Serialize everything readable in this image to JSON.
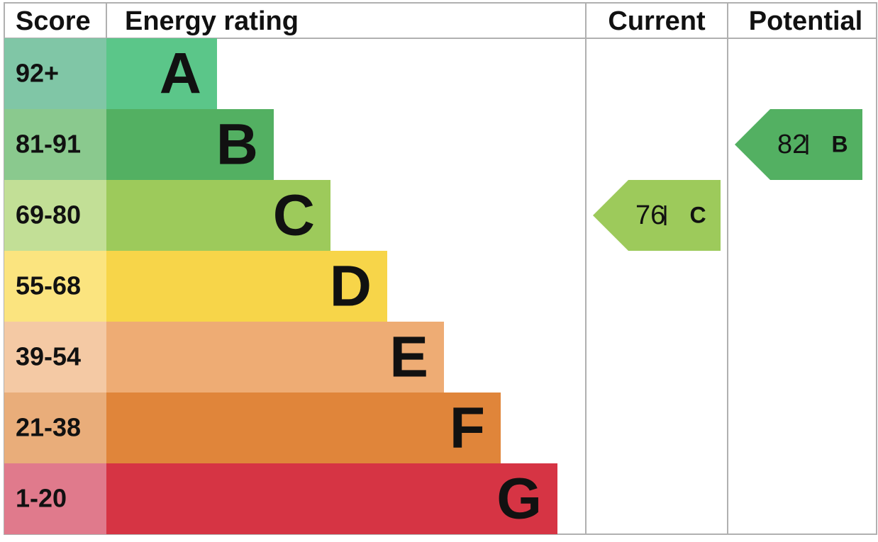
{
  "header": {
    "score": "Score",
    "rating": "Energy rating",
    "current": "Current",
    "potential": "Potential"
  },
  "bands": [
    {
      "score": "92+",
      "letter": "A"
    },
    {
      "score": "81-91",
      "letter": "B"
    },
    {
      "score": "69-80",
      "letter": "C"
    },
    {
      "score": "55-68",
      "letter": "D"
    },
    {
      "score": "39-54",
      "letter": "E"
    },
    {
      "score": "21-38",
      "letter": "F"
    },
    {
      "score": "1-20",
      "letter": "G"
    }
  ],
  "current": {
    "value": 76,
    "letter": "C"
  },
  "potential": {
    "value": 82,
    "letter": "B"
  }
}
